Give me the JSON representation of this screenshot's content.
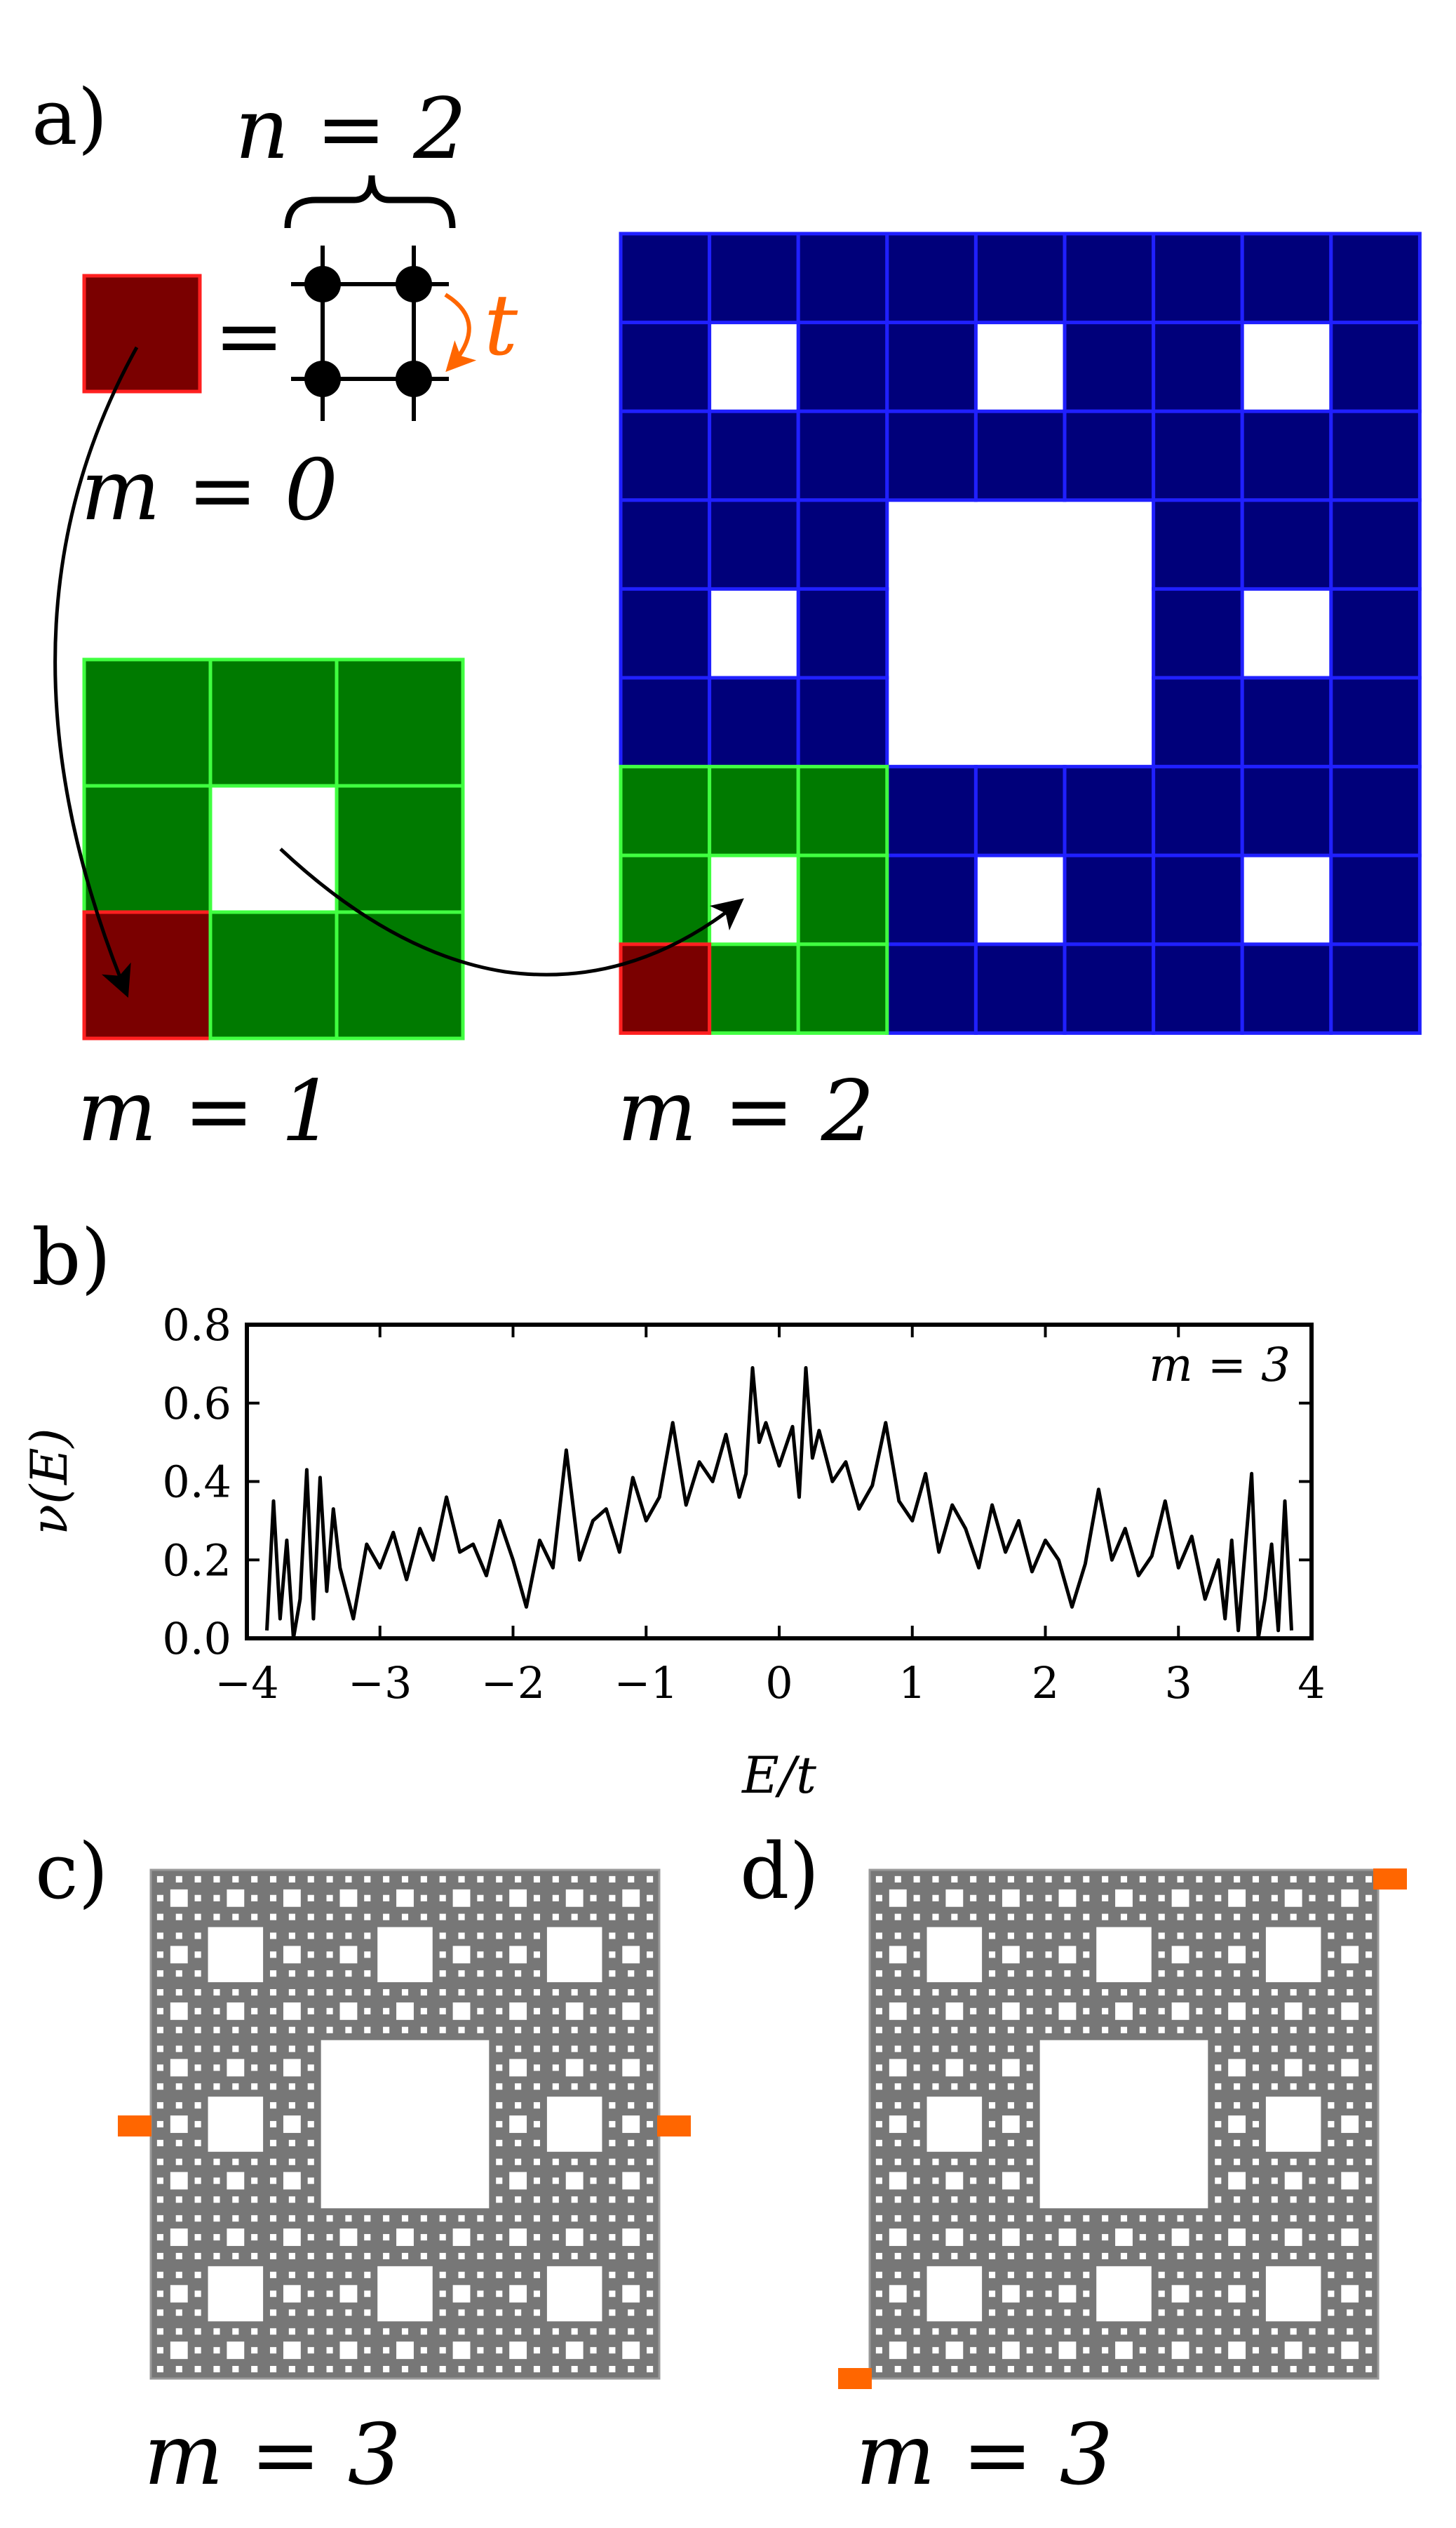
{
  "panels": {
    "a": {
      "label": "a)",
      "n_label": "n = 2",
      "equals_sign": "=",
      "hop_label": "t",
      "gen0_label": "m = 0",
      "gen1_label": "m = 1",
      "gen2_label": "m = 2"
    },
    "b": {
      "label": "b)",
      "inset_label": "m = 3"
    },
    "c": {
      "label": "c)",
      "gen_label": "m = 3",
      "lead_positions": [
        "left-middle",
        "right-middle"
      ]
    },
    "d": {
      "label": "d)",
      "gen_label": "m = 3",
      "lead_positions": [
        "top-right",
        "bottom-left"
      ]
    }
  },
  "colors": {
    "gen0_fill": "#7a0000",
    "gen0_edge": "#ff2020",
    "gen1_fill": "#007a00",
    "gen1_edge": "#40ff40",
    "gen2_fill": "#00007a",
    "gen2_edge": "#2020ff",
    "hop_arrow": "#ff6600",
    "lattice_fill": "#777777",
    "lattice_hole": "#ffffff",
    "lead": "#ff6600",
    "curve": "#000000"
  },
  "chart_data": {
    "type": "line",
    "title": "",
    "xlabel": "E/t",
    "ylabel": "ν(E)",
    "xlim": [
      -4,
      4
    ],
    "ylim": [
      0,
      0.8
    ],
    "xticks": [
      -4,
      -3,
      -2,
      -1,
      0,
      1,
      2,
      3,
      4
    ],
    "xtick_labels": [
      "−4",
      "−3",
      "−2",
      "−1",
      "0",
      "1",
      "2",
      "3",
      "4"
    ],
    "yticks": [
      0.0,
      0.2,
      0.4,
      0.6,
      0.8
    ],
    "ytick_labels": [
      "0.0",
      "0.2",
      "0.4",
      "0.6",
      "0.8"
    ],
    "grid": false,
    "series": [
      {
        "x": [
          -3.85,
          -3.8,
          -3.75,
          -3.7,
          -3.65,
          -3.6,
          -3.55,
          -3.5,
          -3.45,
          -3.4,
          -3.35,
          -3.3,
          -3.2,
          -3.1,
          -3.0,
          -2.9,
          -2.8,
          -2.7,
          -2.6,
          -2.5,
          -2.4,
          -2.3,
          -2.2,
          -2.1,
          -2.0,
          -1.9,
          -1.8,
          -1.7,
          -1.6,
          -1.5,
          -1.4,
          -1.3,
          -1.2,
          -1.1,
          -1.0,
          -0.9,
          -0.8,
          -0.7,
          -0.6,
          -0.5,
          -0.4,
          -0.3,
          -0.25,
          -0.2,
          -0.15,
          -0.1,
          0.0,
          0.1,
          0.15,
          0.2,
          0.25,
          0.3,
          0.4,
          0.5,
          0.6,
          0.7,
          0.8,
          0.9,
          1.0,
          1.1,
          1.2,
          1.3,
          1.4,
          1.5,
          1.6,
          1.7,
          1.8,
          1.9,
          2.0,
          2.1,
          2.2,
          2.3,
          2.4,
          2.5,
          2.6,
          2.7,
          2.8,
          2.9,
          3.0,
          3.1,
          3.2,
          3.3,
          3.35,
          3.4,
          3.45,
          3.5,
          3.55,
          3.6,
          3.65,
          3.7,
          3.75,
          3.8,
          3.85
        ],
        "y": [
          0.02,
          0.35,
          0.05,
          0.25,
          0.0,
          0.1,
          0.43,
          0.05,
          0.41,
          0.12,
          0.33,
          0.18,
          0.05,
          0.24,
          0.18,
          0.27,
          0.15,
          0.28,
          0.2,
          0.36,
          0.22,
          0.24,
          0.16,
          0.3,
          0.2,
          0.08,
          0.25,
          0.18,
          0.48,
          0.2,
          0.3,
          0.33,
          0.22,
          0.41,
          0.3,
          0.36,
          0.55,
          0.34,
          0.45,
          0.4,
          0.52,
          0.36,
          0.42,
          0.69,
          0.5,
          0.55,
          0.44,
          0.54,
          0.36,
          0.69,
          0.46,
          0.53,
          0.4,
          0.45,
          0.33,
          0.39,
          0.55,
          0.35,
          0.3,
          0.42,
          0.22,
          0.34,
          0.28,
          0.18,
          0.34,
          0.22,
          0.3,
          0.17,
          0.25,
          0.2,
          0.08,
          0.19,
          0.38,
          0.2,
          0.28,
          0.16,
          0.21,
          0.35,
          0.18,
          0.26,
          0.1,
          0.2,
          0.05,
          0.25,
          0.02,
          0.22,
          0.42,
          0.0,
          0.1,
          0.24,
          0.02,
          0.35,
          0.02
        ]
      }
    ]
  }
}
